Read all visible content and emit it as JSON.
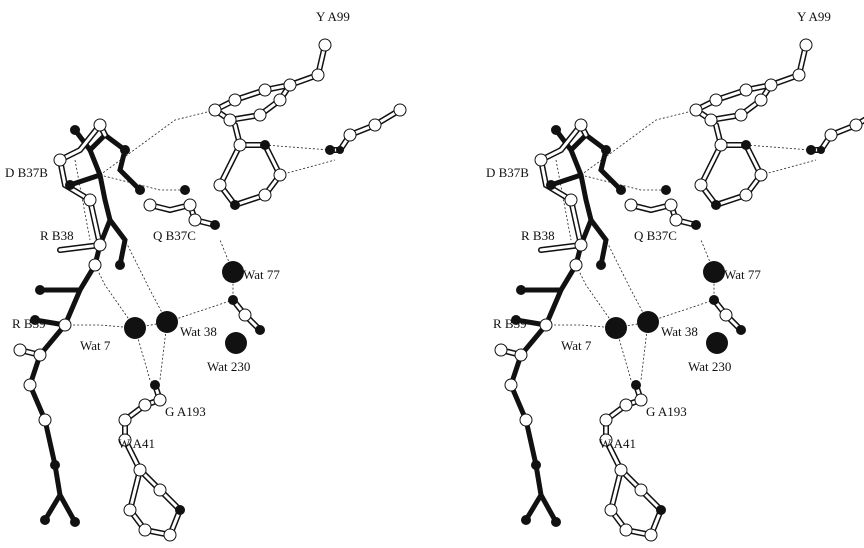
{
  "labels": [
    "Y A99",
    "D B37B",
    "Q B37C",
    "R B38",
    "Wat 77",
    "R B39",
    "Wat 7",
    "Wat 38",
    "Wat 230",
    "G A193",
    "W A41"
  ]
}
